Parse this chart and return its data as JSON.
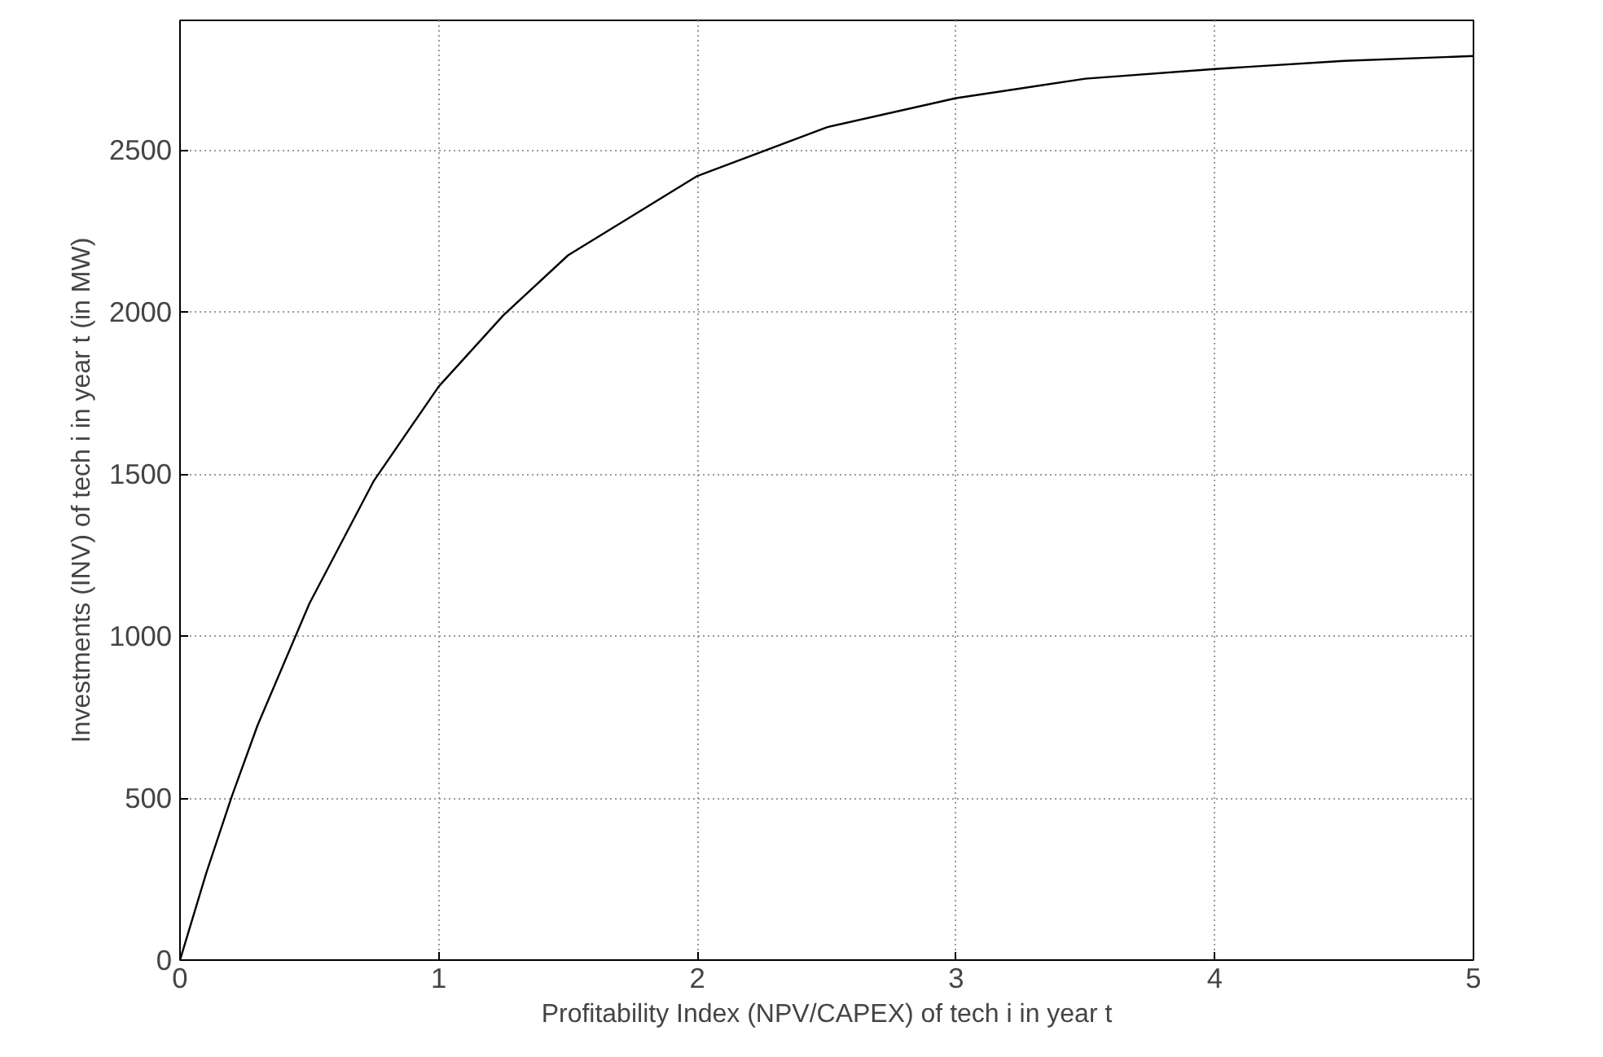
{
  "chart_data": {
    "type": "line",
    "xlabel": "Profitability Index (NPV/CAPEX) of tech i in year t",
    "ylabel": "Investments (INV) of tech i in year t (in MW)",
    "x": [
      0,
      0.1,
      0.2,
      0.3,
      0.5,
      0.75,
      1,
      1.25,
      1.5,
      2,
      2.5,
      3,
      3.5,
      4,
      4.5,
      5
    ],
    "series": [
      {
        "color": "#000000",
        "values": [
          0,
          265,
          505,
          725,
          1100,
          1480,
          1770,
          1990,
          2175,
          2420,
          2570,
          2660,
          2720,
          2750,
          2775,
          2790
        ]
      }
    ],
    "xlim": [
      0,
      5
    ],
    "ylim": [
      0,
      2900
    ],
    "xticks": [
      0,
      1,
      2,
      3,
      4,
      5
    ],
    "yticks": [
      0,
      500,
      1000,
      1500,
      2000,
      2500
    ],
    "grid": true,
    "line_style": "solid",
    "marker": "none"
  }
}
